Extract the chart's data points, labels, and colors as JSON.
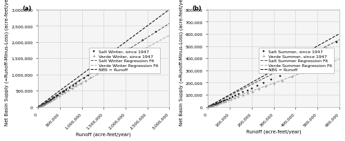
{
  "panel_a": {
    "label": "(a)",
    "xlabel": "Runoff (acre-feet/year)",
    "ylabel": "Net Basin Supply (=Runoff-Minus-Loss) (acre-feet/year)",
    "xlim": [
      0,
      3000000
    ],
    "ylim": [
      0,
      3000000
    ],
    "xticks": [
      0,
      500000,
      1000000,
      1500000,
      2000000,
      2500000,
      3000000
    ],
    "yticks": [
      0,
      500000,
      1000000,
      1500000,
      2000000,
      2500000,
      3000000
    ],
    "salt_data": [
      [
        30000,
        10000
      ],
      [
        50000,
        20000
      ],
      [
        60000,
        30000
      ],
      [
        70000,
        35000
      ],
      [
        80000,
        40000
      ],
      [
        90000,
        50000
      ],
      [
        100000,
        55000
      ],
      [
        120000,
        65000
      ],
      [
        130000,
        70000
      ],
      [
        140000,
        80000
      ],
      [
        150000,
        90000
      ],
      [
        160000,
        100000
      ],
      [
        180000,
        110000
      ],
      [
        200000,
        130000
      ],
      [
        220000,
        150000
      ],
      [
        250000,
        170000
      ],
      [
        280000,
        200000
      ],
      [
        310000,
        230000
      ],
      [
        340000,
        260000
      ],
      [
        380000,
        290000
      ],
      [
        420000,
        330000
      ],
      [
        460000,
        360000
      ],
      [
        510000,
        410000
      ],
      [
        560000,
        450000
      ],
      [
        600000,
        490000
      ],
      [
        650000,
        530000
      ],
      [
        720000,
        590000
      ],
      [
        800000,
        660000
      ],
      [
        870000,
        720000
      ],
      [
        950000,
        790000
      ],
      [
        1050000,
        880000
      ],
      [
        1150000,
        970000
      ],
      [
        1300000,
        1100000
      ],
      [
        1500000,
        1280000
      ],
      [
        1700000,
        1450000
      ],
      [
        1900000,
        1620000
      ],
      [
        2100000,
        1800000
      ],
      [
        2400000,
        2050000
      ],
      [
        2700000,
        2320000
      ]
    ],
    "verde_data": [
      [
        30000,
        5000
      ],
      [
        50000,
        15000
      ],
      [
        70000,
        25000
      ],
      [
        90000,
        35000
      ],
      [
        110000,
        50000
      ],
      [
        130000,
        60000
      ],
      [
        150000,
        75000
      ],
      [
        170000,
        90000
      ],
      [
        200000,
        110000
      ],
      [
        230000,
        135000
      ],
      [
        260000,
        160000
      ],
      [
        300000,
        190000
      ],
      [
        340000,
        220000
      ],
      [
        380000,
        255000
      ],
      [
        430000,
        295000
      ],
      [
        490000,
        340000
      ],
      [
        550000,
        390000
      ],
      [
        620000,
        445000
      ],
      [
        700000,
        505000
      ],
      [
        780000,
        570000
      ],
      [
        870000,
        640000
      ],
      [
        970000,
        720000
      ],
      [
        1080000,
        810000
      ],
      [
        1200000,
        910000
      ],
      [
        1350000,
        1030000
      ],
      [
        1500000,
        1150000
      ],
      [
        1680000,
        1300000
      ],
      [
        1880000,
        1460000
      ],
      [
        2100000,
        1650000
      ]
    ],
    "salt_reg_slope": 0.857,
    "salt_reg_intercept": 0,
    "verde_reg_slope": 0.735,
    "verde_reg_intercept": 0,
    "nbs_slope": 1.0,
    "legend_labels": [
      "Salt Winter, since 1947",
      "Salt Winter Regression Fit",
      "Verde Winter, since 1947",
      "Verde Winter Regression Fit",
      "NBS = Runoff"
    ]
  },
  "panel_b": {
    "label": "(b)",
    "xlabel": "Runoff (acre-feet/year)",
    "ylabel": "Net Basin Supply (=Runoff-Minus-Loss) (acre-feet/year)",
    "xlim": [
      0,
      600000
    ],
    "ylim": [
      0,
      800000
    ],
    "xticks": [
      0,
      100000,
      200000,
      300000,
      400000,
      500000,
      600000
    ],
    "yticks": [
      0,
      100000,
      200000,
      300000,
      400000,
      500000,
      600000,
      700000,
      800000
    ],
    "salt_data": [
      [
        5000,
        2000
      ],
      [
        8000,
        3000
      ],
      [
        10000,
        5000
      ],
      [
        12000,
        6000
      ],
      [
        15000,
        8000
      ],
      [
        18000,
        10000
      ],
      [
        20000,
        12000
      ],
      [
        22000,
        13000
      ],
      [
        25000,
        15000
      ],
      [
        28000,
        18000
      ],
      [
        32000,
        20000
      ],
      [
        35000,
        22000
      ],
      [
        38000,
        25000
      ],
      [
        42000,
        28000
      ],
      [
        48000,
        32000
      ],
      [
        55000,
        37000
      ],
      [
        62000,
        42000
      ],
      [
        70000,
        48000
      ],
      [
        78000,
        55000
      ],
      [
        88000,
        62000
      ],
      [
        100000,
        72000
      ],
      [
        112000,
        82000
      ],
      [
        125000,
        92000
      ],
      [
        140000,
        105000
      ],
      [
        160000,
        120000
      ],
      [
        180000,
        136000
      ],
      [
        200000,
        152000
      ],
      [
        225000,
        172000
      ],
      [
        255000,
        195000
      ],
      [
        290000,
        222000
      ],
      [
        330000,
        255000
      ],
      [
        375000,
        288000
      ],
      [
        425000,
        330000
      ],
      [
        480000,
        373000
      ],
      [
        540000,
        480000
      ],
      [
        590000,
        530000
      ]
    ],
    "verde_data": [
      [
        5000,
        1000
      ],
      [
        8000,
        2000
      ],
      [
        12000,
        4000
      ],
      [
        16000,
        6000
      ],
      [
        20000,
        8000
      ],
      [
        25000,
        11000
      ],
      [
        30000,
        14000
      ],
      [
        35000,
        17000
      ],
      [
        42000,
        21000
      ],
      [
        50000,
        26000
      ],
      [
        60000,
        32000
      ],
      [
        70000,
        38000
      ],
      [
        80000,
        45000
      ],
      [
        92000,
        52000
      ],
      [
        105000,
        61000
      ],
      [
        120000,
        71000
      ],
      [
        138000,
        82000
      ],
      [
        158000,
        95000
      ],
      [
        180000,
        109000
      ],
      [
        205000,
        125000
      ],
      [
        232000,
        143000
      ],
      [
        265000,
        165000
      ],
      [
        300000,
        188000
      ],
      [
        340000,
        215000
      ],
      [
        385000,
        245000
      ],
      [
        435000,
        280000
      ],
      [
        490000,
        318000
      ],
      [
        555000,
        365000
      ]
    ],
    "salt_reg_slope": 0.92,
    "salt_reg_intercept": 0,
    "verde_reg_slope": 0.65,
    "verde_reg_intercept": 0,
    "nbs_slope": 1.0,
    "legend_labels": [
      "Salt Summer, since 1947",
      "Salt Summer Regression Fit",
      "Verde Summer, since 1947",
      "Verde Summer Regression Fit",
      "NBS = Runoff"
    ]
  },
  "bg_color": "#f5f5f5",
  "grid_color": "#cccccc",
  "salt_marker": "s",
  "verde_marker": "+",
  "salt_color": "#222222",
  "verde_color": "#888888",
  "salt_reg_color": "#555555",
  "verde_reg_color": "#aaaaaa",
  "nbs_color": "#111111",
  "marker_size": 2.5,
  "plus_size": 5,
  "line_width": 0.8,
  "font_size": 5,
  "label_font_size": 5,
  "tick_font_size": 4.5
}
